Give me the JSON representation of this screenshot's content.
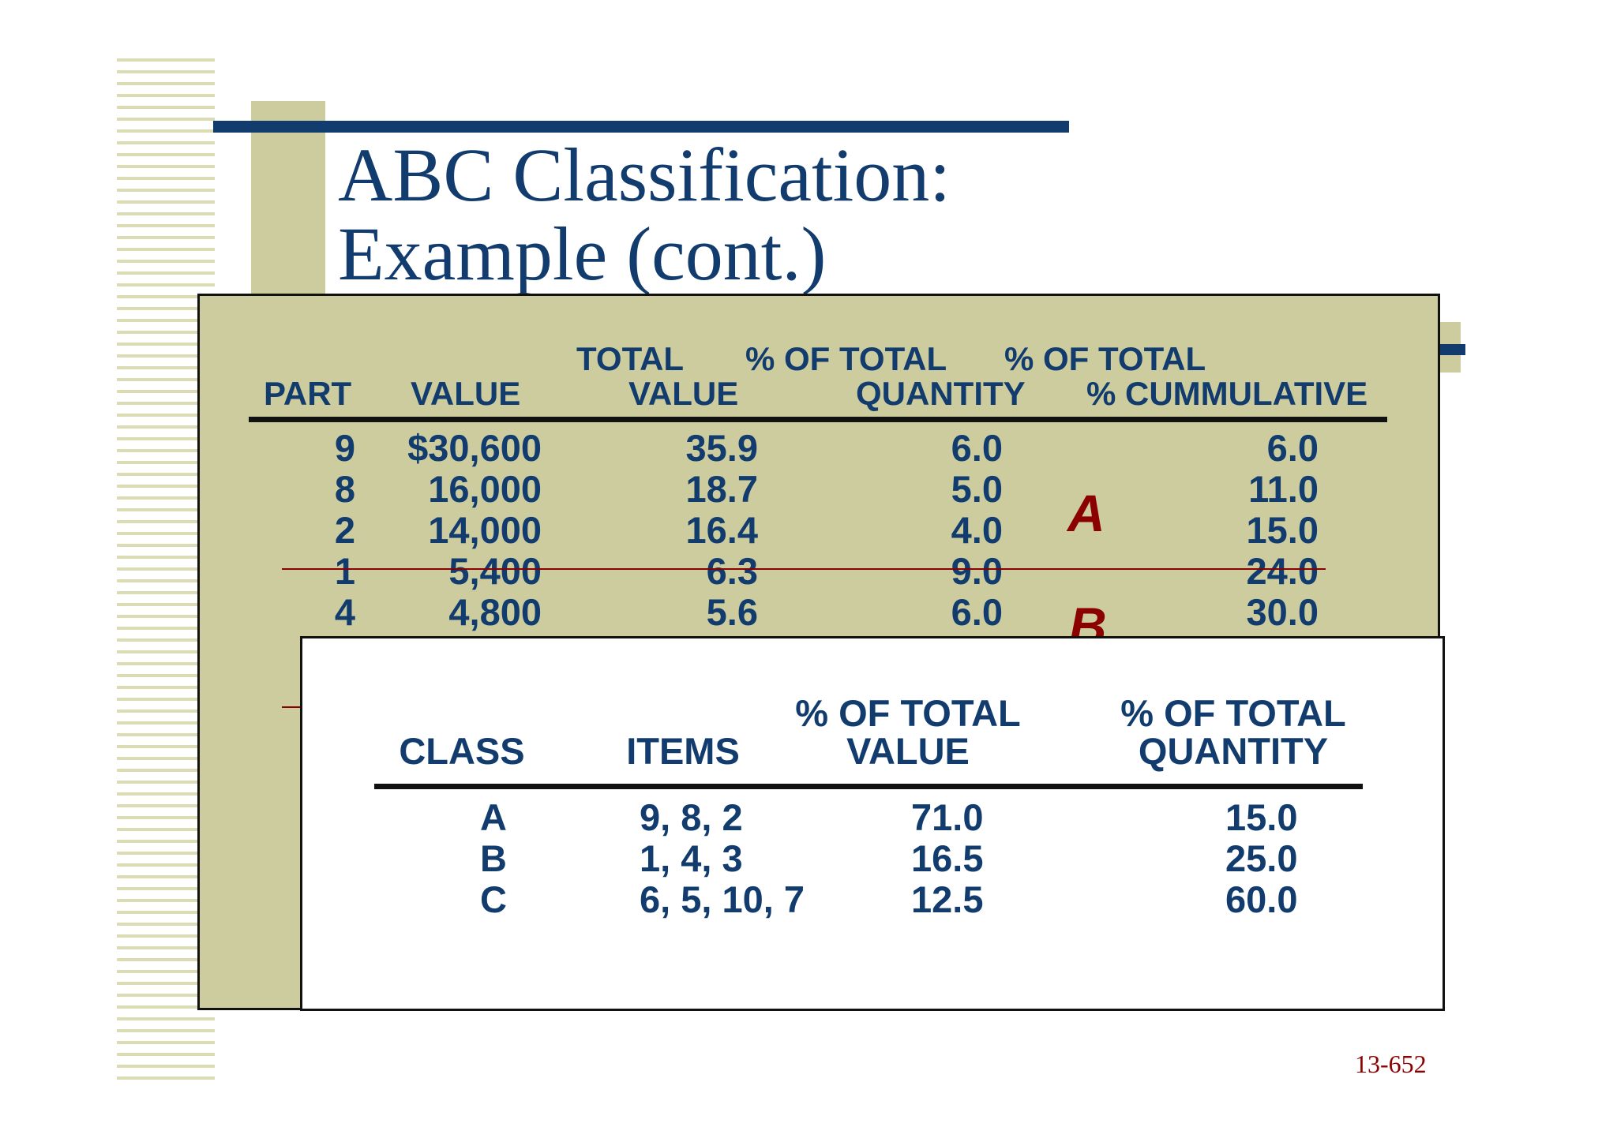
{
  "slide": {
    "title_line1": "ABC Classification:",
    "title_line2": "Example (cont.)",
    "page_number": "13-652"
  },
  "detail_table": {
    "header_line1": {
      "total": "TOTAL",
      "pct_value": "% OF TOTAL",
      "pct_qty": "% OF TOTAL"
    },
    "header_line2": {
      "part": "PART",
      "value": "VALUE",
      "total_value": "VALUE",
      "quantity": "QUANTITY",
      "cumulative": "% CUMMULATIVE"
    },
    "rows": [
      {
        "part": "9",
        "value": "$30,600",
        "pct_value": "35.9",
        "pct_qty": "6.0",
        "cumulative": "6.0"
      },
      {
        "part": "8",
        "value": "16,000",
        "pct_value": "18.7",
        "pct_qty": "5.0",
        "cumulative": "11.0"
      },
      {
        "part": "2",
        "value": "14,000",
        "pct_value": "16.4",
        "pct_qty": "4.0",
        "cumulative": "15.0"
      },
      {
        "part": "1",
        "value": "5,400",
        "pct_value": "6.3",
        "pct_qty": "9.0",
        "cumulative": "24.0"
      },
      {
        "part": "4",
        "value": "4,800",
        "pct_value": "5.6",
        "pct_qty": "6.0",
        "cumulative": "30.0"
      }
    ],
    "class_labels": {
      "a": "A",
      "b": "B"
    },
    "colors": {
      "panel": "#cccc9f",
      "text": "#123c6e",
      "accent": "#8b0000"
    }
  },
  "summary_table": {
    "headers": {
      "class": "CLASS",
      "items": "ITEMS",
      "pct_value_line1": "% OF TOTAL",
      "pct_value_line2": "VALUE",
      "pct_qty_line1": "% OF TOTAL",
      "pct_qty_line2": "QUANTITY"
    },
    "rows": [
      {
        "class": "A",
        "items": "9, 8, 2",
        "pct_value": "71.0",
        "pct_qty": "15.0"
      },
      {
        "class": "B",
        "items": "1, 4, 3",
        "pct_value": "16.5",
        "pct_qty": "25.0"
      },
      {
        "class": "C",
        "items": "6, 5, 10, 7",
        "pct_value": "12.5",
        "pct_qty": "60.0"
      }
    ]
  }
}
